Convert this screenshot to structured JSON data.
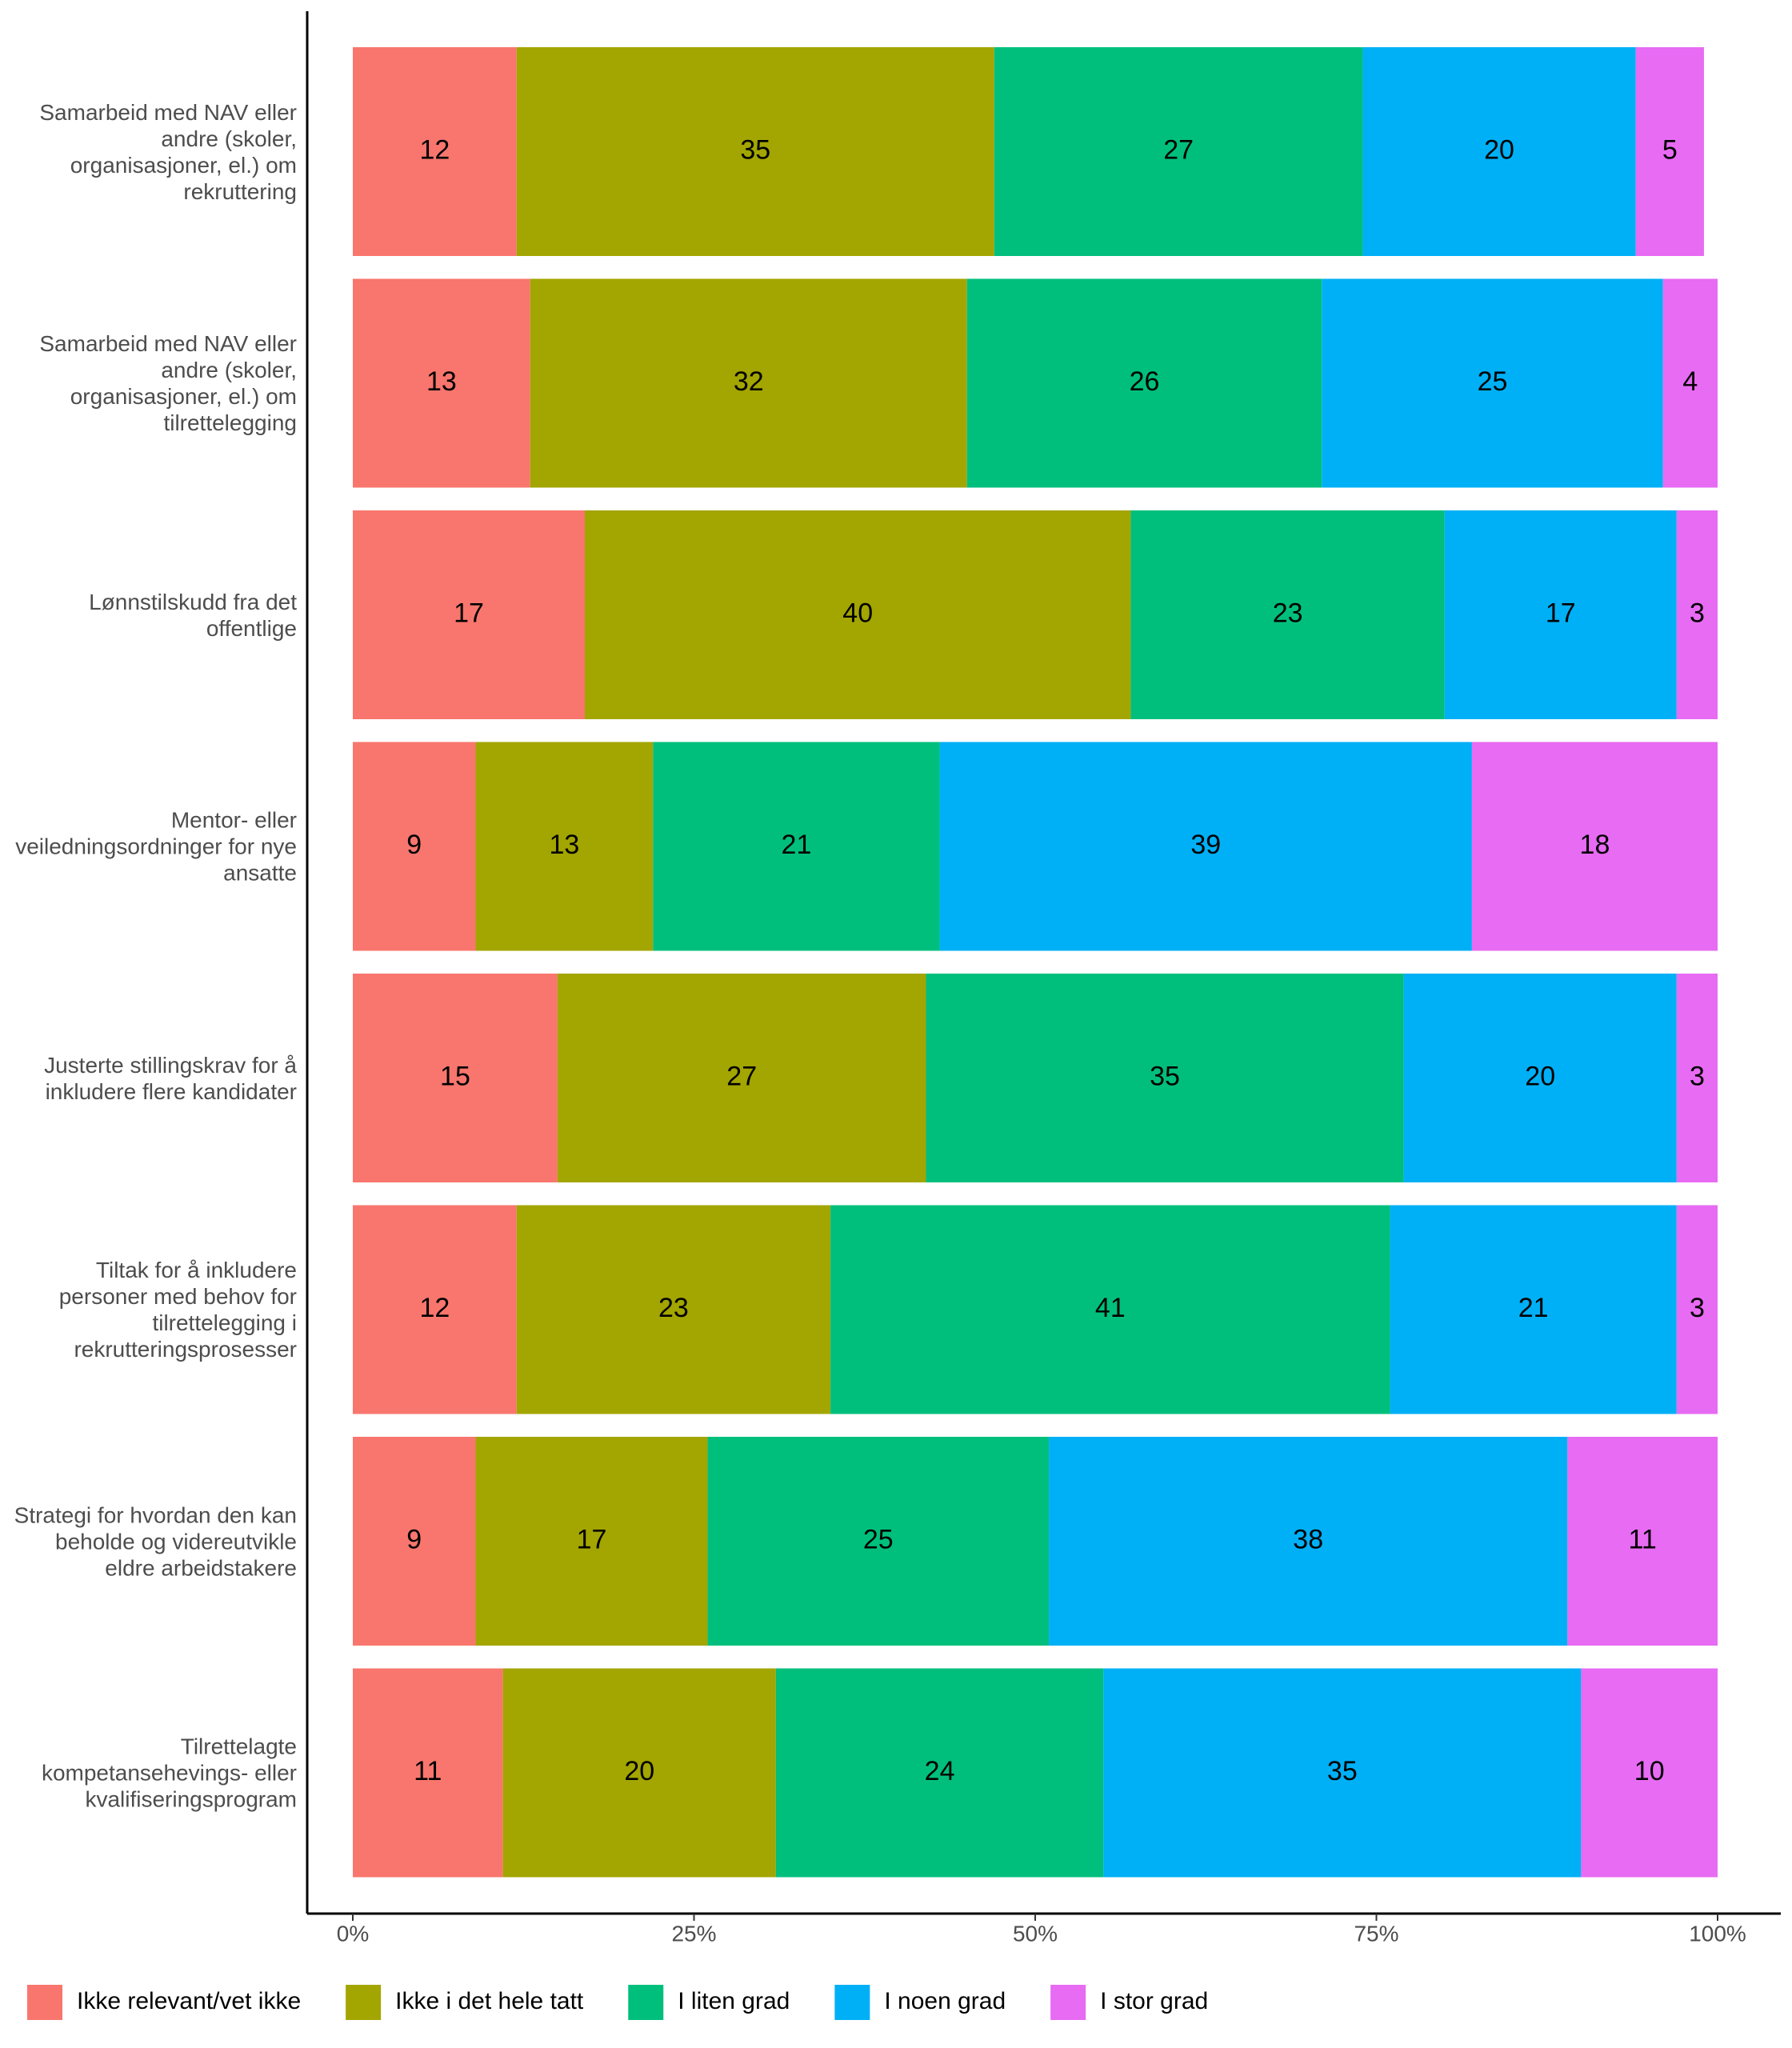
{
  "chart_data": {
    "type": "stacked_bar_horizontal",
    "categories": [
      "Samarbeid med NAV eller andre (skoler, organisasjoner, el.) om rekruttering",
      "Samarbeid med NAV eller andre (skoler, organisasjoner, el.) om tilrettelegging",
      "Lønnstilskudd fra det offentlige",
      "Mentor- eller veiledningsordninger for nye ansatte",
      "Justerte stillingskrav for å inkludere flere kandidater",
      "Tiltak for å inkludere personer med behov for tilrettelegging i rekrutteringsprosesser",
      "Strategi for hvordan den kan beholde og videreutvikle eldre arbeidstakere",
      "Tilrettelagte kompetansehevings- eller kvalifiseringsprogram"
    ],
    "series": [
      {
        "name": "Ikke relevant/vet ikke",
        "color": "#F8766D",
        "values": [
          12,
          13,
          17,
          9,
          15,
          12,
          9,
          11
        ]
      },
      {
        "name": "Ikke i det hele tatt",
        "color": "#A3A500",
        "values": [
          35,
          32,
          40,
          13,
          27,
          23,
          17,
          20
        ]
      },
      {
        "name": "I liten grad",
        "color": "#00BF7D",
        "values": [
          27,
          26,
          23,
          21,
          35,
          41,
          25,
          24
        ]
      },
      {
        "name": "I noen grad",
        "color": "#00B0F6",
        "values": [
          20,
          25,
          17,
          39,
          20,
          21,
          38,
          35
        ]
      },
      {
        "name": "I stor grad",
        "color": "#E76BF3",
        "values": [
          5,
          4,
          3,
          18,
          3,
          3,
          11,
          10
        ]
      }
    ],
    "xlim": [
      0,
      100
    ],
    "xticks": [
      {
        "value": 0,
        "label": "0%"
      },
      {
        "value": 25,
        "label": "25%"
      },
      {
        "value": 50,
        "label": "50%"
      },
      {
        "value": 75,
        "label": "75%"
      },
      {
        "value": 100,
        "label": "100%"
      }
    ],
    "legend": "bottom"
  }
}
